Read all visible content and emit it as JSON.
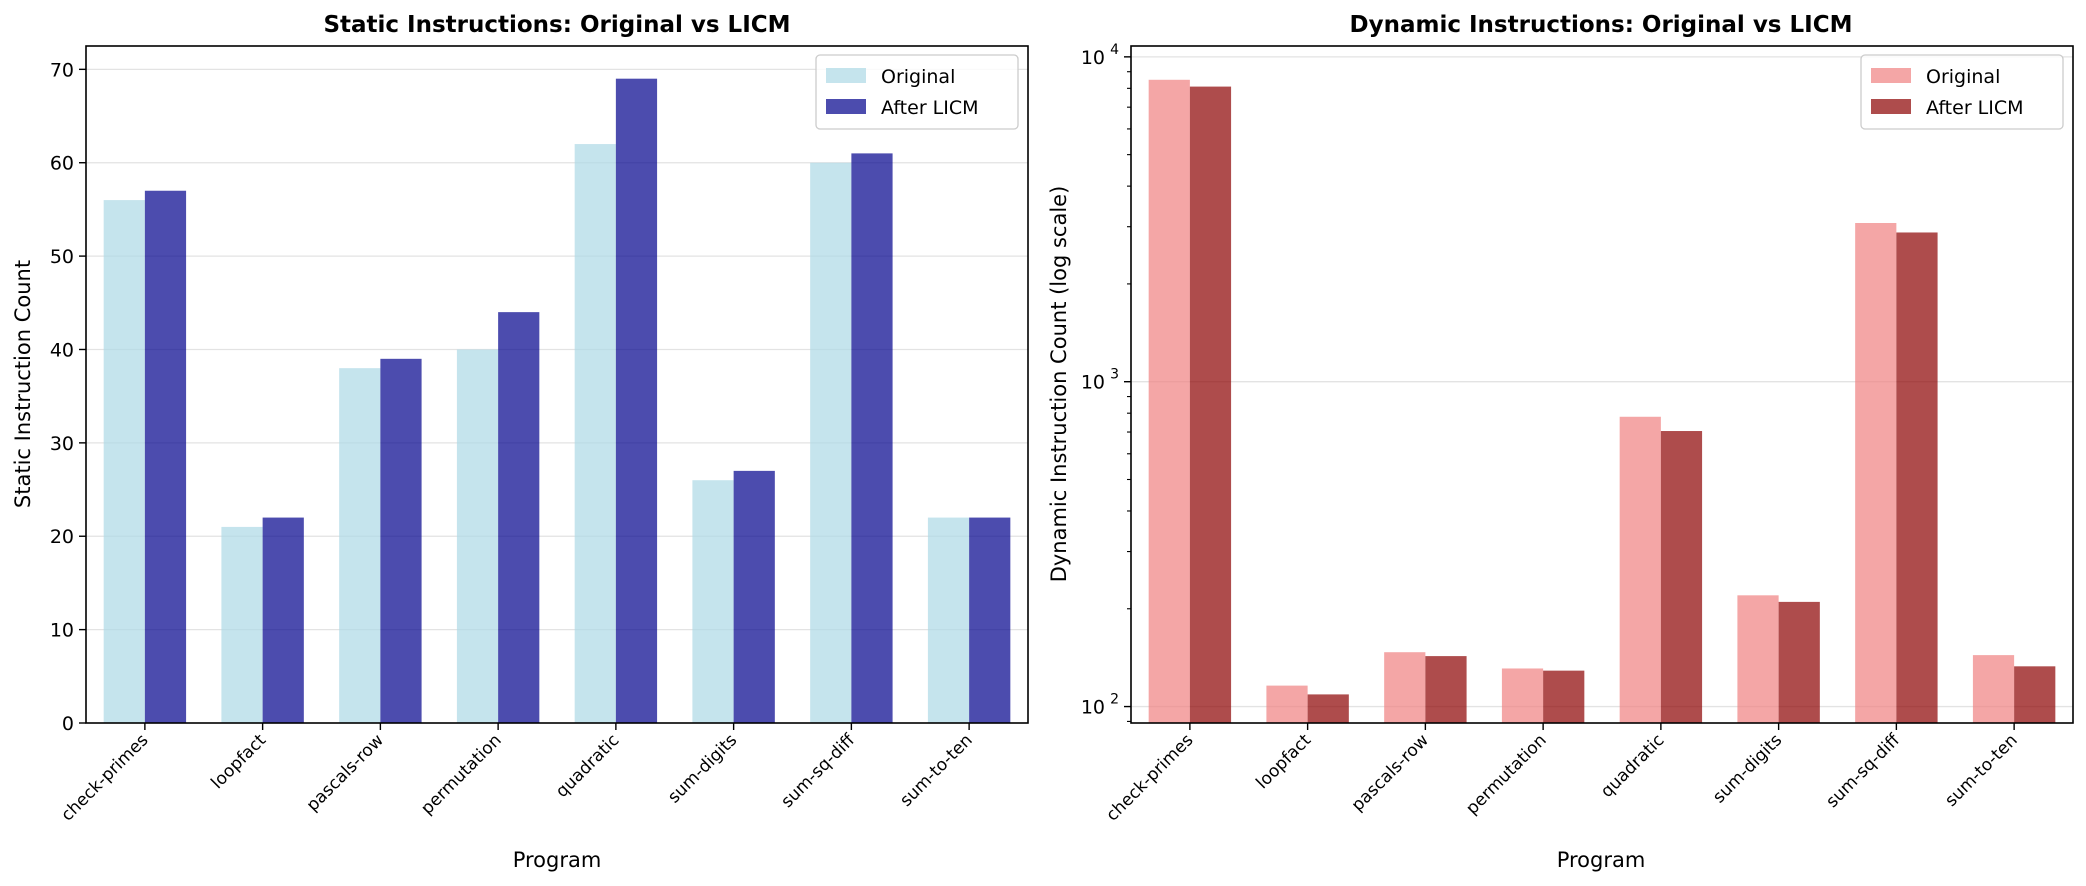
{
  "chart_data": [
    {
      "type": "bar",
      "title": "Static Instructions: Original vs LICM",
      "xlabel": "Program",
      "ylabel": "Static Instruction Count",
      "yscale": "linear",
      "ylim": [
        0,
        72.5
      ],
      "yticks": [
        0,
        10,
        20,
        30,
        40,
        50,
        60,
        70
      ],
      "ytick_labels": [
        "0",
        "10",
        "20",
        "30",
        "40",
        "50",
        "60",
        "70"
      ],
      "grid": "horizontal",
      "legend": "top-right",
      "categories": [
        "check-primes",
        "loopfact",
        "pascals-row",
        "permutation",
        "quadratic",
        "sum-digits",
        "sum-sq-diff",
        "sum-to-ten"
      ],
      "series": [
        {
          "name": "Original",
          "color": "#add8e6",
          "values": [
            56,
            21,
            38,
            40,
            62,
            26,
            60,
            22
          ]
        },
        {
          "name": "After LICM",
          "color": "#00008b",
          "values": [
            57,
            22,
            39,
            44,
            69,
            27,
            61,
            22
          ]
        }
      ]
    },
    {
      "type": "bar",
      "title": "Dynamic Instructions: Original vs LICM",
      "xlabel": "Program",
      "ylabel": "Dynamic Instruction Count (log scale)",
      "yscale": "log",
      "ylim": [
        89,
        10800
      ],
      "yticks": [
        100,
        1000,
        10000
      ],
      "ytick_labels": [
        "10",
        "10",
        "10"
      ],
      "ytick_exponents": [
        "2",
        "3",
        "4"
      ],
      "grid": "horizontal",
      "legend": "top-right",
      "categories": [
        "check-primes",
        "loopfact",
        "pascals-row",
        "permutation",
        "quadratic",
        "sum-digits",
        "sum-sq-diff",
        "sum-to-ten"
      ],
      "series": [
        {
          "name": "Original",
          "color": "#f08080",
          "values": [
            8500,
            116,
            147,
            131,
            780,
            220,
            3080,
            144
          ]
        },
        {
          "name": "After LICM",
          "color": "#8b0000",
          "values": [
            8100,
            109,
            143,
            129,
            705,
            210,
            2880,
            133
          ]
        }
      ]
    }
  ]
}
